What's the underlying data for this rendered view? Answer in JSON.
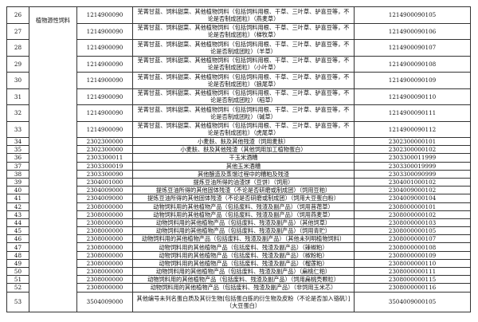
{
  "category": "植物源性饲料",
  "rows": [
    {
      "no": "26",
      "hs": "1214900090",
      "desc": "芜菁甘蓝、饲料甜菜、其他植物饲料（包括饲料用根、干草、三叶草、驴喜豆等，不论是否制成团粒）（燕麦草）",
      "code": "1214900090105"
    },
    {
      "no": "27",
      "hs": "1214900090",
      "desc": "芜菁甘蓝、饲料甜菜、其他植物饲料（包括饲料用根、干草、三叶草、驴喜豆等，不论是否制成团粒）（梯牧草）",
      "code": "1214900090106"
    },
    {
      "no": "28",
      "hs": "1214900090",
      "desc": "芜菁甘蓝、饲料甜菜、其他植物饲料（包括饲料用根、干草、三叶草、驴喜豆等，不论是否制成团粒）（羊草）",
      "code": "1214900090107"
    },
    {
      "no": "29",
      "hs": "1214900090",
      "desc": "芜菁甘蓝、饲料甜菜、其他植物饲料（包括饲料用根、干草、三叶草、驴喜豆等，不论是否制成团粒）（小叶草）",
      "code": "1214900090108"
    },
    {
      "no": "30",
      "hs": "1214900090",
      "desc": "芜菁甘蓝、饲料甜菜、其他植物饲料（包括饲料用根、干草、三叶草、驴喜豆等，不论是否制成团粒）（狼尾草）",
      "code": "1214900090109"
    },
    {
      "no": "31",
      "hs": "1214900090",
      "desc": "芜菁甘蓝、饲料甜菜、其他植物饲料（包括饲料用根、干草、三叶草、驴喜豆等，不论是否制成团粒）（稻草）",
      "code": "1214900090110"
    },
    {
      "no": "32",
      "hs": "1214900090",
      "desc": "芜菁甘蓝、饲料甜菜、其他植物饲料（包括饲料用根、干草、三叶草、驴喜豆等，不论是否制成团粒）（碱草）",
      "code": "1214900090111"
    },
    {
      "no": "33",
      "hs": "1214900090",
      "desc": "芜菁甘蓝、饲料甜菜、其他植物饲料（包括饲料用根、干草、三叶草、驴喜豆等，不论是否制成团粒）（虎尾草）",
      "code": "1214900090112"
    },
    {
      "no": "34",
      "hs": "2302300000",
      "desc": "小麦麸、麸及其他残渣（饲用麦麸）",
      "code": "2302300000101"
    },
    {
      "no": "35",
      "hs": "2302300000",
      "desc": "小麦麸、麸及其他残渣（其他饲用加工植物蛋白）",
      "code": "2302300000102"
    },
    {
      "no": "36",
      "hs": "2303300011",
      "desc": "干玉米酒糟",
      "code": "2303300011999"
    },
    {
      "no": "37",
      "hs": "2303300019",
      "desc": "其他玉米酒糟",
      "code": "2303300019999"
    },
    {
      "no": "38",
      "hs": "2303300090",
      "desc": "其他酿造及蒸馏过程中的糟粕及残渣",
      "code": "2303300090999"
    },
    {
      "no": "39",
      "hs": "2304001000",
      "desc": "提炼豆油所得的油渣饼（豆饼）（饲用）",
      "code": "2304001000102"
    },
    {
      "no": "40",
      "hs": "2304009000",
      "desc": "提炼豆油所得的其他固体残渣（不论是否研磨或制成团）（饲用豆粕）",
      "code": "2304009000102"
    },
    {
      "no": "41",
      "hs": "2304009000",
      "desc": "提炼豆油所得的其他固体残渣（不论是否研磨或制成团）（饲用大豆蛋白粉）",
      "code": "2304009000104"
    },
    {
      "no": "42",
      "hs": "2308000000",
      "desc": "动物饲料用的其他植物产品（包括废料、残渣及副产品）（饲用苜蓿草）",
      "code": "2308000000101"
    },
    {
      "no": "43",
      "hs": "2308000000",
      "desc": "动物饲料用的其他植物产品（包括废料、残渣及副产品）（饲用燕麦草）",
      "code": "2308000000102"
    },
    {
      "no": "44",
      "hs": "2308000000",
      "desc": "动物饲料用的其他植物产品（包括废料、残渣及副产品）（其他饲草）",
      "code": "2308000000103"
    },
    {
      "no": "45",
      "hs": "2308000000",
      "desc": "动物饲料用的其他植物产品（包括废料、残渣及副产品）（饲用青贮）",
      "code": "2308000000105"
    },
    {
      "no": "46",
      "hs": "2308000000",
      "desc": "动物饲料用的其他植物产品（包括废料、残渣及副产品）（其他未列明植物饲料）",
      "code": "2308000000107"
    },
    {
      "no": "47",
      "hs": "2308000000",
      "desc": "动物饲料用的其他植物产品（包括废料、残渣及副产品）（辣椒粕）",
      "code": "2308000000108"
    },
    {
      "no": "48",
      "hs": "2308000000",
      "desc": "动物饲料用的其他植物产品（包括废料、残渣及副产品）（椒粉粕）",
      "code": "2308000000109"
    },
    {
      "no": "49",
      "hs": "2308000000",
      "desc": "动物饲料用的其他植物产品（包括废料、残渣及副产品）（榴莲粕）",
      "code": "2308000000110"
    },
    {
      "no": "50",
      "hs": "2308000000",
      "desc": "动物饲料用的其他植物产品（包括废料、残渣及副产品）（扁桃仁粕）",
      "code": "2308000000111"
    },
    {
      "no": "51",
      "hs": "2308000000",
      "desc": "动物饲料用的其他植物产品（包括废料、残渣及副产品）（饲用扁桃壳颗粒）",
      "code": "2308000000115"
    },
    {
      "no": "52",
      "hs": "2308000000",
      "desc": "动物饲料用的其他植物产品（包括废料、残渣及副产品）（非饲用玉米芯）",
      "code": "2308000000116"
    },
    {
      "no": "53",
      "hs": "3504009000",
      "desc": "其他编号未列名蛋白质及其衍生物[包括蛋白胨的衍生物及皮粉（不论是否加入铬矾）]（大豆蛋白）",
      "code": "3504009000105"
    }
  ]
}
